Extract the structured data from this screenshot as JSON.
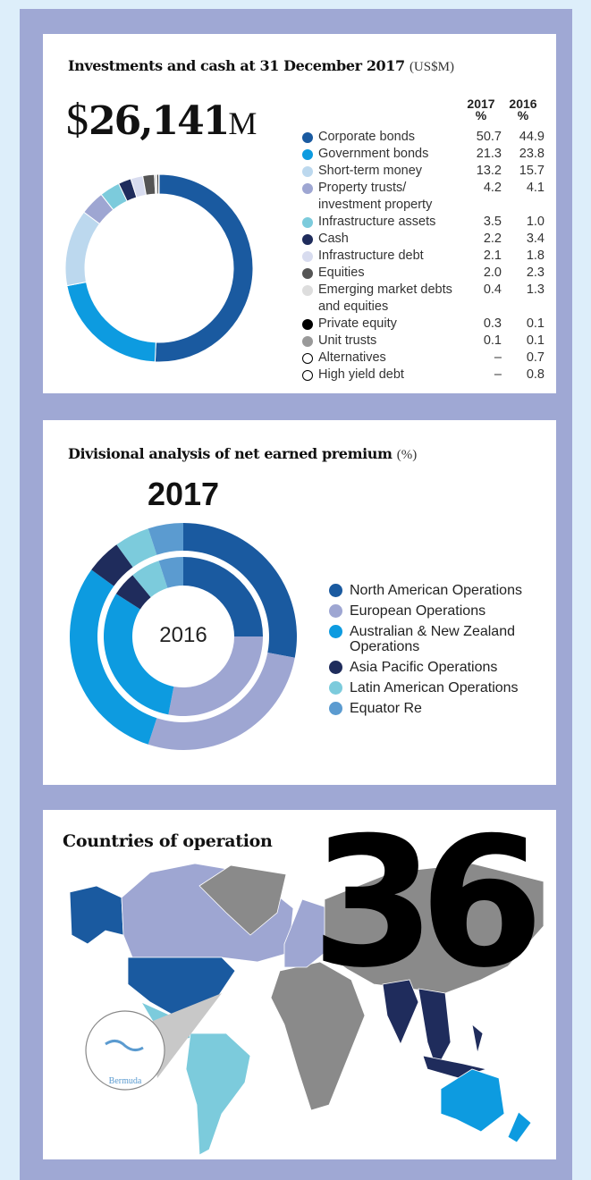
{
  "chart_data": [
    {
      "type": "donut",
      "title": "Investments and cash at 31 December 2017",
      "title_unit": "(US$M)",
      "total": {
        "prefix": "$",
        "value": "26,141",
        "suffix": "M"
      },
      "value_unit": "%",
      "categories": [
        "Corporate bonds",
        "Government bonds",
        "Short-term money",
        "Property trusts/ investment property",
        "Infrastructure assets",
        "Cash",
        "Infrastructure debt",
        "Equities",
        "Emerging market debts and equities",
        "Private equity",
        "Unit trusts",
        "Alternatives",
        "High yield debt"
      ],
      "colors": [
        "#1a5aa0",
        "#0d9be0",
        "#bcd8ee",
        "#9ea6d2",
        "#7ccbdc",
        "#1f2c5c",
        "#d8dcef",
        "#555555",
        "#dddddd",
        "#000000",
        "#999999",
        "#ffffff",
        "#ffffff"
      ],
      "series": [
        {
          "name": "2017",
          "values": [
            50.7,
            21.3,
            13.2,
            4.2,
            3.5,
            2.2,
            2.1,
            2.0,
            0.4,
            0.3,
            0.1,
            null,
            null
          ],
          "value_labels": [
            "50.7",
            "21.3",
            "13.2",
            "4.2",
            "3.5",
            "2.2",
            "2.1",
            "2.0",
            "0.4",
            "0.3",
            "0.1",
            "–",
            "–"
          ]
        },
        {
          "name": "2016",
          "values": [
            44.9,
            23.8,
            15.7,
            4.1,
            1.0,
            3.4,
            1.8,
            2.3,
            1.3,
            0.1,
            0.1,
            0.7,
            0.8
          ],
          "value_labels": [
            "44.9",
            "23.8",
            "15.7",
            "4.1",
            "1.0",
            "3.4",
            "1.8",
            "2.3",
            "1.3",
            "0.1",
            "0.1",
            "0.7",
            "0.8"
          ]
        }
      ]
    },
    {
      "type": "donut",
      "title": "Divisional analysis of net earned premium",
      "title_unit": "(%)",
      "categories": [
        "North American Operations",
        "European Operations",
        "Australian & New Zealand Operations",
        "Asia Pacific Operations",
        "Latin American Operations",
        "Equator Re"
      ],
      "colors": [
        "#1a5aa0",
        "#9ea6d2",
        "#0d9be0",
        "#1f2c5c",
        "#7ccbdc",
        "#5b9bd0"
      ],
      "series": [
        {
          "name": "2017",
          "values": [
            28,
            27,
            30,
            5,
            5,
            5
          ]
        },
        {
          "name": "2016",
          "values": [
            25,
            28,
            31,
            5,
            6,
            5
          ]
        }
      ]
    }
  ],
  "map": {
    "title": "Countries of operation",
    "count": 36,
    "inset_label": "Bermuda"
  }
}
